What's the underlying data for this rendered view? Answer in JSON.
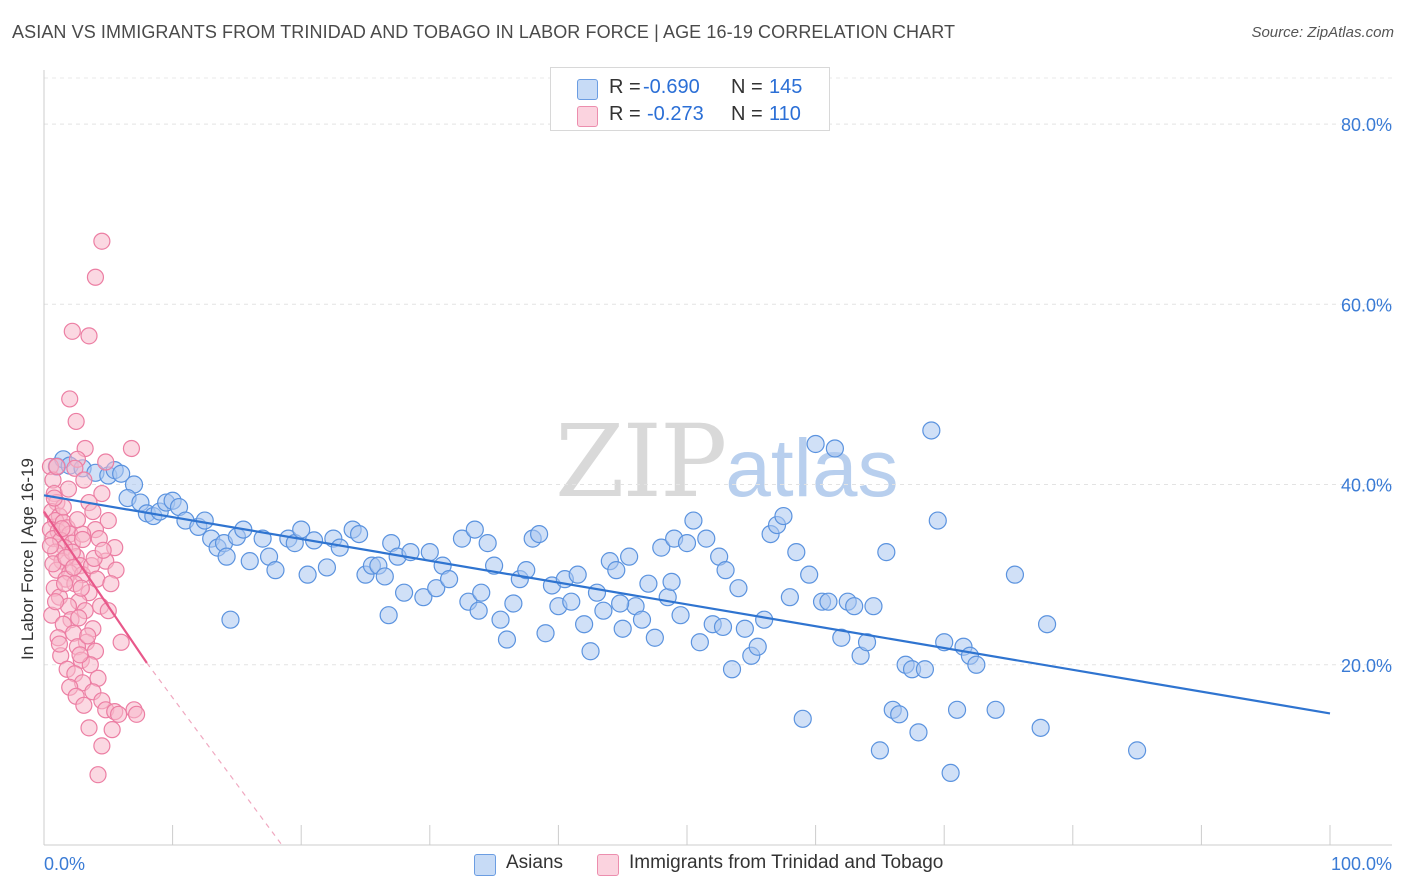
{
  "header": {
    "title": "ASIAN VS IMMIGRANTS FROM TRINIDAD AND TOBAGO IN LABOR FORCE | AGE 16-19 CORRELATION CHART",
    "source": "Source: ZipAtlas.com"
  },
  "legend": {
    "rows": [
      {
        "r_label": "R = ",
        "r_value": "-0.690",
        "n_label": "N = ",
        "n_value": "145",
        "color": "#a9c6f0"
      },
      {
        "r_label": "R = ",
        "r_value": "-0.273",
        "n_label": "N = ",
        "n_value": "110",
        "color": "#f7b8cb"
      }
    ]
  },
  "bottom_legend": {
    "items": [
      {
        "label": "Asians",
        "color": "#a9c6f0"
      },
      {
        "label": "Immigrants from Trinidad and Tobago",
        "color": "#f7b8cb"
      }
    ]
  },
  "watermark": {
    "zip": "ZIP",
    "atlas": "atlas"
  },
  "chart_data": {
    "type": "scatter",
    "title": "ASIAN VS IMMIGRANTS FROM TRINIDAD AND TOBAGO IN LABOR FORCE | AGE 16-19 CORRELATION CHART",
    "xlabel": "",
    "ylabel": "In Labor Force | Age 16-19",
    "xlim": [
      0,
      100
    ],
    "ylim": [
      0,
      86
    ],
    "x_tick_labels": [
      "0.0%",
      "100.0%"
    ],
    "y_tick_labels": [
      "20.0%",
      "40.0%",
      "60.0%",
      "80.0%"
    ],
    "y_ticks": [
      20,
      40,
      60,
      80
    ],
    "grid": true,
    "accent_colors": {
      "asians": "#2f74d0",
      "trinidad": "#e8588a"
    },
    "series": [
      {
        "name": "Asians",
        "color": "#a9c6f0",
        "stroke": "#5b93df",
        "trend": {
          "x": [
            0,
            100
          ],
          "y": [
            38.8,
            14.6
          ]
        },
        "points": [
          [
            1.0,
            42.0
          ],
          [
            1.5,
            42.8
          ],
          [
            2.0,
            42.1
          ],
          [
            3.0,
            41.8
          ],
          [
            4.0,
            41.3
          ],
          [
            5.0,
            41.0
          ],
          [
            5.5,
            41.6
          ],
          [
            6.0,
            41.2
          ],
          [
            7.0,
            40.0
          ],
          [
            6.5,
            38.5
          ],
          [
            7.5,
            38.0
          ],
          [
            8.0,
            36.8
          ],
          [
            8.5,
            36.5
          ],
          [
            9.0,
            37.0
          ],
          [
            9.5,
            38.0
          ],
          [
            10.0,
            38.2
          ],
          [
            10.5,
            37.5
          ],
          [
            11.0,
            36.0
          ],
          [
            12.0,
            35.3
          ],
          [
            12.5,
            36.0
          ],
          [
            13.0,
            34.0
          ],
          [
            13.5,
            33.0
          ],
          [
            14.0,
            33.5
          ],
          [
            15.0,
            34.2
          ],
          [
            15.5,
            35.0
          ],
          [
            14.2,
            32.0
          ],
          [
            17.0,
            34.0
          ],
          [
            17.5,
            32.0
          ],
          [
            18.0,
            30.5
          ],
          [
            19.0,
            34.0
          ],
          [
            19.5,
            33.5
          ],
          [
            20.0,
            35.0
          ],
          [
            21.0,
            33.8
          ],
          [
            22.0,
            30.8
          ],
          [
            22.5,
            34.0
          ],
          [
            23.0,
            33.0
          ],
          [
            24.0,
            35.0
          ],
          [
            24.5,
            34.5
          ],
          [
            25.0,
            30.0
          ],
          [
            25.5,
            31.0
          ],
          [
            26.0,
            31.0
          ],
          [
            26.5,
            29.8
          ],
          [
            27.0,
            33.5
          ],
          [
            27.5,
            32.0
          ],
          [
            28.0,
            28.0
          ],
          [
            28.5,
            32.5
          ],
          [
            29.5,
            27.5
          ],
          [
            30.0,
            32.5
          ],
          [
            30.5,
            28.5
          ],
          [
            31.0,
            31.0
          ],
          [
            31.5,
            29.5
          ],
          [
            32.5,
            34.0
          ],
          [
            33.0,
            27.0
          ],
          [
            33.5,
            35.0
          ],
          [
            34.0,
            28.0
          ],
          [
            34.5,
            33.5
          ],
          [
            35.0,
            31.0
          ],
          [
            35.5,
            25.0
          ],
          [
            36.0,
            22.8
          ],
          [
            36.5,
            26.8
          ],
          [
            37.0,
            29.5
          ],
          [
            37.5,
            30.5
          ],
          [
            38.0,
            34.0
          ],
          [
            38.5,
            34.5
          ],
          [
            39.0,
            23.5
          ],
          [
            39.5,
            28.8
          ],
          [
            40.0,
            26.5
          ],
          [
            40.5,
            29.5
          ],
          [
            41.0,
            27.0
          ],
          [
            41.5,
            30.0
          ],
          [
            42.0,
            24.5
          ],
          [
            42.5,
            21.5
          ],
          [
            43.0,
            28.0
          ],
          [
            43.5,
            26.0
          ],
          [
            44.0,
            31.5
          ],
          [
            44.5,
            30.5
          ],
          [
            45.0,
            24.0
          ],
          [
            45.5,
            32.0
          ],
          [
            46.0,
            26.5
          ],
          [
            46.5,
            25.0
          ],
          [
            47.0,
            29.0
          ],
          [
            47.5,
            23.0
          ],
          [
            48.0,
            33.0
          ],
          [
            48.5,
            27.5
          ],
          [
            49.0,
            34.0
          ],
          [
            49.5,
            25.5
          ],
          [
            50.0,
            33.5
          ],
          [
            50.5,
            36.0
          ],
          [
            51.0,
            22.5
          ],
          [
            51.5,
            34.0
          ],
          [
            52.0,
            24.5
          ],
          [
            52.5,
            32.0
          ],
          [
            53.0,
            30.5
          ],
          [
            53.5,
            19.5
          ],
          [
            54.0,
            28.5
          ],
          [
            54.5,
            24.0
          ],
          [
            55.0,
            21.0
          ],
          [
            55.5,
            22.0
          ],
          [
            56.0,
            25.0
          ],
          [
            56.5,
            34.5
          ],
          [
            57.0,
            35.5
          ],
          [
            57.5,
            36.5
          ],
          [
            58.0,
            27.5
          ],
          [
            58.5,
            32.5
          ],
          [
            59.0,
            14.0
          ],
          [
            59.5,
            30.0
          ],
          [
            60.0,
            44.5
          ],
          [
            60.5,
            27.0
          ],
          [
            61.0,
            27.0
          ],
          [
            61.5,
            44.0
          ],
          [
            62.0,
            23.0
          ],
          [
            62.5,
            27.0
          ],
          [
            63.0,
            26.5
          ],
          [
            63.5,
            21.0
          ],
          [
            64.0,
            22.5
          ],
          [
            64.5,
            26.5
          ],
          [
            65.0,
            10.5
          ],
          [
            65.5,
            32.5
          ],
          [
            66.0,
            15.0
          ],
          [
            66.5,
            14.5
          ],
          [
            67.0,
            20.0
          ],
          [
            67.5,
            19.5
          ],
          [
            68.0,
            12.5
          ],
          [
            68.5,
            19.5
          ],
          [
            69.0,
            46.0
          ],
          [
            69.5,
            36.0
          ],
          [
            70.0,
            22.5
          ],
          [
            70.5,
            8.0
          ],
          [
            71.0,
            15.0
          ],
          [
            71.5,
            22.0
          ],
          [
            72.0,
            21.0
          ],
          [
            72.5,
            20.0
          ],
          [
            74.0,
            15.0
          ],
          [
            75.5,
            30.0
          ],
          [
            77.5,
            13.0
          ],
          [
            78.0,
            24.5
          ],
          [
            85.0,
            10.5
          ],
          [
            14.5,
            25.0
          ],
          [
            16.0,
            31.5
          ],
          [
            20.5,
            30.0
          ],
          [
            26.8,
            25.5
          ],
          [
            33.8,
            26.0
          ],
          [
            44.8,
            26.8
          ],
          [
            48.8,
            29.2
          ],
          [
            52.8,
            24.2
          ]
        ]
      },
      {
        "name": "Immigrants from Trinidad and Tobago",
        "color": "#f7b8cb",
        "stroke": "#ec7ea3",
        "trend": {
          "x": [
            0,
            8.0
          ],
          "y": [
            37.0,
            20.2
          ]
        },
        "trend_dashed": {
          "x": [
            8.0,
            18.5
          ],
          "y": [
            20.2,
            -2.0
          ]
        },
        "points": [
          [
            0.5,
            42.0
          ],
          [
            0.7,
            40.5
          ],
          [
            0.8,
            39.0
          ],
          [
            1.0,
            38.0
          ],
          [
            0.6,
            37.0
          ],
          [
            1.2,
            36.5
          ],
          [
            0.9,
            36.0
          ],
          [
            1.5,
            35.8
          ],
          [
            0.5,
            35.0
          ],
          [
            1.1,
            34.8
          ],
          [
            1.8,
            35.2
          ],
          [
            2.0,
            34.5
          ],
          [
            0.7,
            34.0
          ],
          [
            1.3,
            33.8
          ],
          [
            2.2,
            33.5
          ],
          [
            1.6,
            33.0
          ],
          [
            0.9,
            32.5
          ],
          [
            2.5,
            32.0
          ],
          [
            1.4,
            31.5
          ],
          [
            2.8,
            31.0
          ],
          [
            1.0,
            30.5
          ],
          [
            2.0,
            30.2
          ],
          [
            3.0,
            30.0
          ],
          [
            1.7,
            29.5
          ],
          [
            2.4,
            29.0
          ],
          [
            0.8,
            28.5
          ],
          [
            3.5,
            28.0
          ],
          [
            1.2,
            27.5
          ],
          [
            2.7,
            27.0
          ],
          [
            1.9,
            26.5
          ],
          [
            3.2,
            26.0
          ],
          [
            0.6,
            25.5
          ],
          [
            2.1,
            25.0
          ],
          [
            1.5,
            24.5
          ],
          [
            3.8,
            24.0
          ],
          [
            2.3,
            23.5
          ],
          [
            1.1,
            23.0
          ],
          [
            3.3,
            22.5
          ],
          [
            2.6,
            22.0
          ],
          [
            4.0,
            21.5
          ],
          [
            1.3,
            21.0
          ],
          [
            2.9,
            20.5
          ],
          [
            3.6,
            20.0
          ],
          [
            1.8,
            19.5
          ],
          [
            2.4,
            19.0
          ],
          [
            4.2,
            18.5
          ],
          [
            3.0,
            18.0
          ],
          [
            2.0,
            17.5
          ],
          [
            3.8,
            17.0
          ],
          [
            2.5,
            16.5
          ],
          [
            4.5,
            16.0
          ],
          [
            3.1,
            15.5
          ],
          [
            4.8,
            15.0
          ],
          [
            5.5,
            14.8
          ],
          [
            7.0,
            15.0
          ],
          [
            7.2,
            14.5
          ],
          [
            5.8,
            14.5
          ],
          [
            3.5,
            13.0
          ],
          [
            5.3,
            12.8
          ],
          [
            4.5,
            11.0
          ],
          [
            4.2,
            7.8
          ],
          [
            4.5,
            67.0
          ],
          [
            4.0,
            63.0
          ],
          [
            3.5,
            56.5
          ],
          [
            2.2,
            57.0
          ],
          [
            2.0,
            49.5
          ],
          [
            2.5,
            47.0
          ],
          [
            3.2,
            44.0
          ],
          [
            6.8,
            44.0
          ],
          [
            4.8,
            42.5
          ],
          [
            2.6,
            42.8
          ],
          [
            1.0,
            42.0
          ],
          [
            2.4,
            41.8
          ],
          [
            4.5,
            39.0
          ],
          [
            3.5,
            38.0
          ],
          [
            3.8,
            37.0
          ],
          [
            1.5,
            37.5
          ],
          [
            5.0,
            36.0
          ],
          [
            4.0,
            35.0
          ],
          [
            3.0,
            34.5
          ],
          [
            4.3,
            34.0
          ],
          [
            5.5,
            33.0
          ],
          [
            2.2,
            32.5
          ],
          [
            4.8,
            31.5
          ],
          [
            3.7,
            31.0
          ],
          [
            5.6,
            30.5
          ],
          [
            4.1,
            29.5
          ],
          [
            5.2,
            29.0
          ],
          [
            4.4,
            26.5
          ],
          [
            5.0,
            26.0
          ],
          [
            6.0,
            22.5
          ],
          [
            2.9,
            28.5
          ],
          [
            1.6,
            29.0
          ],
          [
            0.9,
            27.0
          ],
          [
            2.7,
            25.2
          ],
          [
            3.4,
            23.2
          ],
          [
            1.2,
            22.3
          ],
          [
            2.8,
            21.1
          ],
          [
            0.5,
            33.2
          ],
          [
            0.7,
            31.2
          ],
          [
            1.7,
            31.9
          ],
          [
            2.3,
            30.8
          ],
          [
            3.9,
            31.8
          ],
          [
            4.6,
            32.7
          ],
          [
            3.0,
            33.9
          ],
          [
            1.4,
            35.1
          ],
          [
            2.6,
            36.1
          ],
          [
            0.8,
            38.5
          ],
          [
            1.9,
            39.5
          ],
          [
            3.1,
            40.5
          ]
        ]
      }
    ]
  }
}
